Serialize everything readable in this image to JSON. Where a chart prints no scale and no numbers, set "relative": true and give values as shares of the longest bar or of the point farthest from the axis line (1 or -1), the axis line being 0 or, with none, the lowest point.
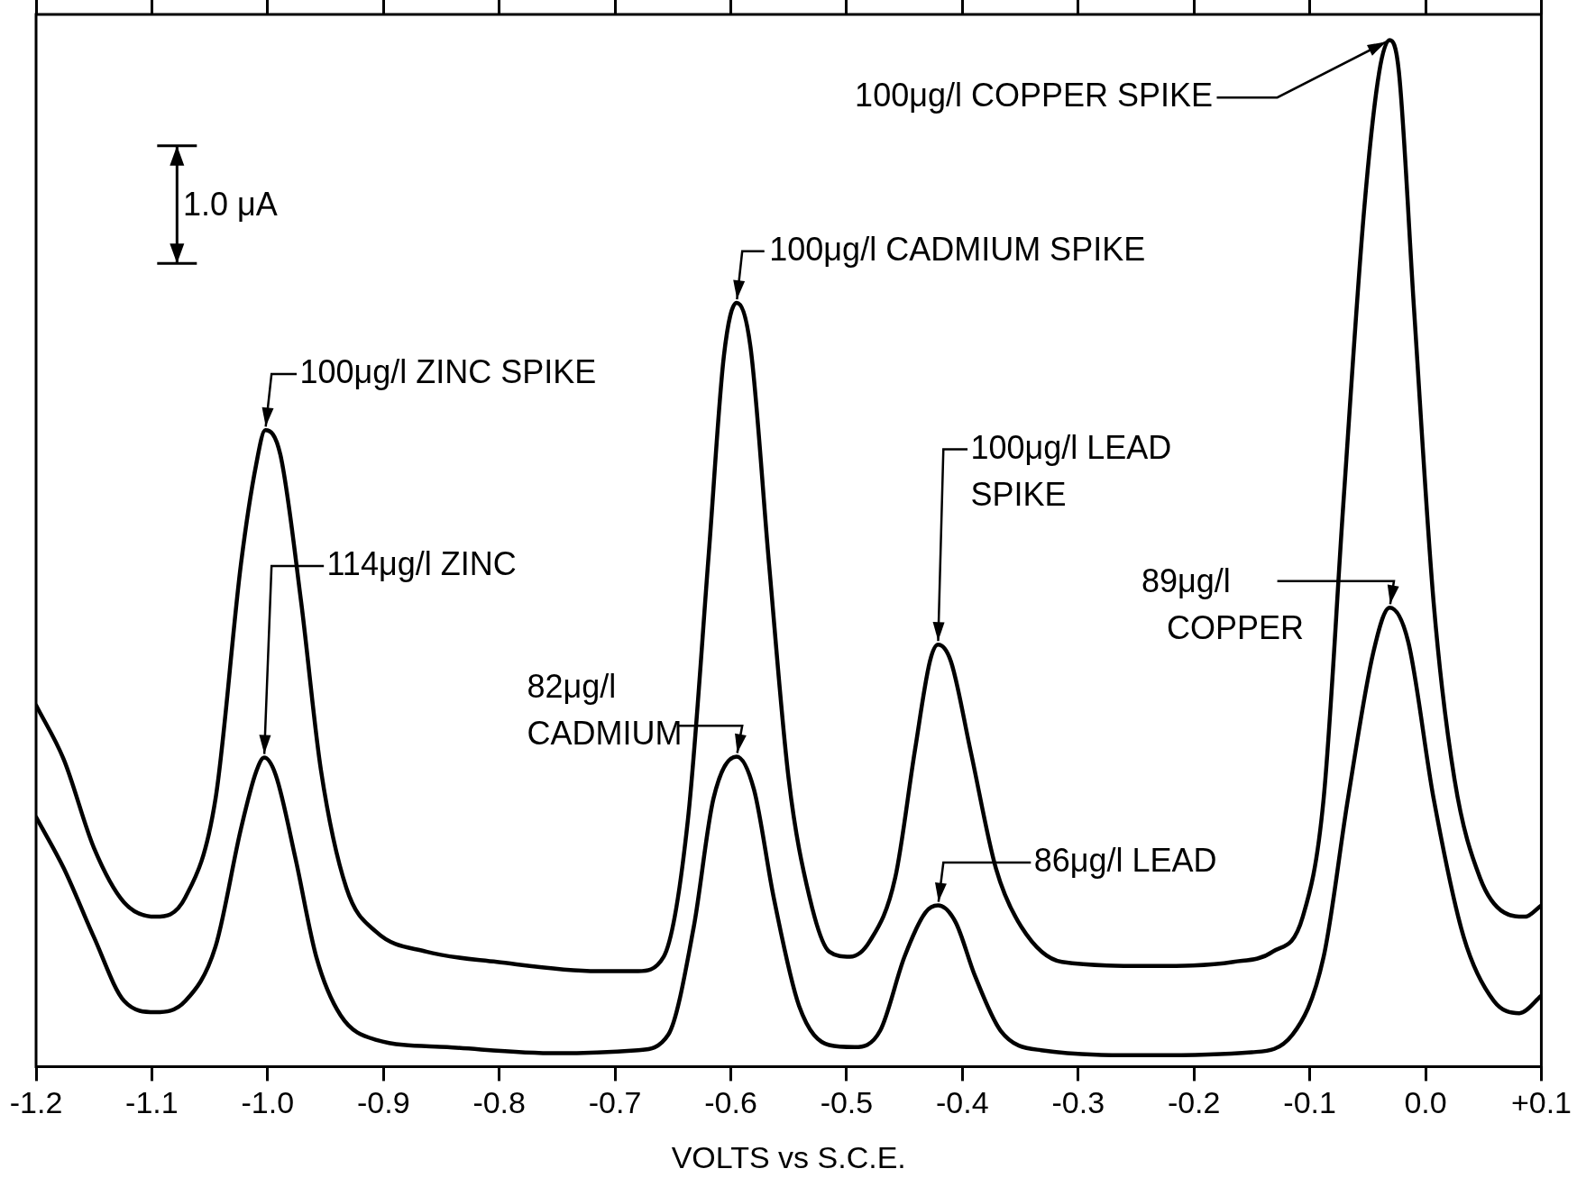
{
  "chart_data": {
    "type": "line",
    "relative": true,
    "xlabel": "VOLTS vs S.C.E.",
    "grid": false,
    "legend": false,
    "marker": "none",
    "line_style": "solid",
    "xlim": [
      -1.2,
      0.1
    ],
    "xticks": [
      {
        "value": -1.2,
        "label": "-1.2"
      },
      {
        "value": -1.1,
        "label": "-1.1"
      },
      {
        "value": -1.0,
        "label": "-1.0"
      },
      {
        "value": -0.9,
        "label": "-0.9"
      },
      {
        "value": -0.8,
        "label": "-0.8"
      },
      {
        "value": -0.7,
        "label": "-0.7"
      },
      {
        "value": -0.6,
        "label": "-0.6"
      },
      {
        "value": -0.5,
        "label": "-0.5"
      },
      {
        "value": -0.4,
        "label": "-0.4"
      },
      {
        "value": -0.3,
        "label": "-0.3"
      },
      {
        "value": -0.2,
        "label": "-0.2"
      },
      {
        "value": -0.1,
        "label": "-0.1"
      },
      {
        "value": 0.0,
        "label": "0.0"
      },
      {
        "value": 0.1,
        "label": "+0.1"
      }
    ],
    "series": [
      {
        "color": "#000000",
        "x": [
          -1.2,
          -1.176,
          -1.15,
          -1.124,
          -1.097,
          -1.071,
          -1.045,
          -1.023,
          -1.01,
          -1.002,
          -0.989,
          -0.971,
          -0.954,
          -0.932,
          -0.906,
          -0.863,
          -0.802,
          -0.715,
          -0.68,
          -0.658,
          -0.637,
          -0.619,
          -0.606,
          -0.595,
          -0.583,
          -0.567,
          -0.55,
          -0.532,
          -0.515,
          -0.497,
          -0.48,
          -0.458,
          -0.441,
          -0.428,
          -0.421,
          -0.41,
          -0.393,
          -0.371,
          -0.349,
          -0.314,
          -0.236,
          -0.166,
          -0.132,
          -0.106,
          -0.088,
          -0.071,
          -0.053,
          -0.04,
          -0.031,
          -0.023,
          -0.01,
          0.007,
          0.025,
          0.047,
          0.068,
          0.086,
          0.1
        ],
        "values": [
          0.352,
          0.299,
          0.213,
          0.16,
          0.146,
          0.165,
          0.261,
          0.49,
          0.586,
          0.62,
          0.596,
          0.452,
          0.289,
          0.174,
          0.131,
          0.112,
          0.102,
          0.093,
          0.093,
          0.107,
          0.241,
          0.5,
          0.692,
          0.744,
          0.701,
          0.49,
          0.28,
          0.165,
          0.112,
          0.107,
          0.122,
          0.184,
          0.308,
          0.395,
          0.411,
          0.395,
          0.308,
          0.193,
          0.136,
          0.102,
          0.098,
          0.102,
          0.112,
          0.146,
          0.261,
          0.548,
          0.835,
          0.969,
          1.0,
          0.969,
          0.739,
          0.452,
          0.28,
          0.184,
          0.15,
          0.146,
          0.157
        ]
      },
      {
        "color": "#000000",
        "x": [
          -1.2,
          -1.176,
          -1.15,
          -1.124,
          -1.097,
          -1.071,
          -1.045,
          -1.023,
          -1.01,
          -1.003,
          -0.993,
          -0.976,
          -0.958,
          -0.937,
          -0.906,
          -0.845,
          -0.75,
          -0.68,
          -0.654,
          -0.632,
          -0.615,
          -0.595,
          -0.58,
          -0.563,
          -0.541,
          -0.515,
          -0.493,
          -0.471,
          -0.45,
          -0.432,
          -0.421,
          -0.406,
          -0.389,
          -0.367,
          -0.332,
          -0.236,
          -0.15,
          -0.115,
          -0.088,
          -0.067,
          -0.045,
          -0.031,
          -0.015,
          0.007,
          0.033,
          0.059,
          0.081,
          0.1
        ],
        "values": [
          0.243,
          0.193,
          0.126,
          0.064,
          0.053,
          0.064,
          0.117,
          0.232,
          0.287,
          0.301,
          0.284,
          0.203,
          0.107,
          0.05,
          0.026,
          0.019,
          0.013,
          0.016,
          0.031,
          0.136,
          0.261,
          0.302,
          0.27,
          0.165,
          0.059,
          0.021,
          0.019,
          0.035,
          0.107,
          0.15,
          0.157,
          0.141,
          0.088,
          0.035,
          0.016,
          0.011,
          0.014,
          0.031,
          0.107,
          0.261,
          0.404,
          0.447,
          0.414,
          0.261,
          0.126,
          0.064,
          0.052,
          0.069
        ]
      }
    ],
    "annotations": [
      {
        "text": "100μg/l COPPER SPIKE",
        "x": -0.031,
        "y": 1.0
      },
      {
        "text": "100μg/l CADMIUM SPIKE",
        "x": -0.595,
        "y": 0.744
      },
      {
        "text": "100μg/l ZINC SPIKE",
        "x": -1.002,
        "y": 0.62
      },
      {
        "text": "114μg/l ZINC",
        "x": -1.003,
        "y": 0.301
      },
      {
        "text": "82μg/l\nCADMIUM",
        "x": -0.595,
        "y": 0.302
      },
      {
        "text": "100μg/l LEAD\nSPIKE",
        "x": -0.421,
        "y": 0.411
      },
      {
        "text": "86μg/l LEAD",
        "x": -0.421,
        "y": 0.157
      },
      {
        "text": "89μg/l\nCOPPER",
        "x": -0.031,
        "y": 0.447
      },
      "1.0 μA"
    ]
  }
}
